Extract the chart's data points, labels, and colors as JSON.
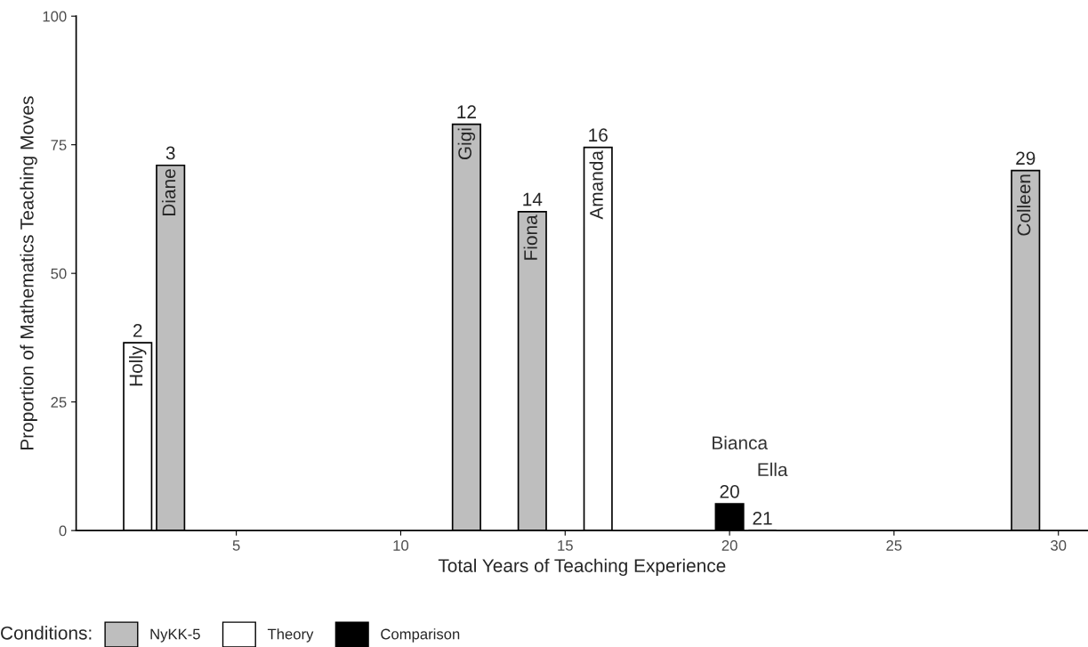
{
  "chart_data": {
    "type": "bar",
    "xlabel": "Total Years of Teaching Experience",
    "ylabel": "Proportion of Mathematics Teaching Moves",
    "legend_title": "Conditions:",
    "legend": "bottom",
    "grid": false,
    "x": [
      2,
      3,
      12,
      14,
      16,
      20,
      21,
      29
    ],
    "series": [
      {
        "name": "NyKK-5",
        "color": "#bebebe",
        "values": [
          null,
          71,
          79,
          62,
          null,
          null,
          null,
          70
        ]
      },
      {
        "name": "Theory",
        "color": "#ffffff",
        "values": [
          36.5,
          null,
          null,
          null,
          74.5,
          null,
          null,
          null
        ]
      },
      {
        "name": "Comparison",
        "color": "#000000",
        "values": [
          null,
          null,
          null,
          null,
          null,
          5.2,
          0,
          null
        ]
      }
    ],
    "annotations": [
      {
        "text": "2",
        "x": 2,
        "y": 36.5
      },
      {
        "text": "3",
        "x": 3,
        "y": 71
      },
      {
        "text": "12",
        "x": 12,
        "y": 79
      },
      {
        "text": "14",
        "x": 14,
        "y": 62
      },
      {
        "text": "16",
        "x": 16,
        "y": 74.5
      },
      {
        "text": "20",
        "x": 20,
        "y": 5.2
      },
      {
        "text": "21",
        "x": 21,
        "y": 0
      },
      {
        "text": "29",
        "x": 29,
        "y": 70
      },
      {
        "text": "Holly",
        "x": 2,
        "y": 36.5
      },
      {
        "text": "Diane",
        "x": 3,
        "y": 71
      },
      {
        "text": "Gigi",
        "x": 12,
        "y": 79
      },
      {
        "text": "Fiona",
        "x": 14,
        "y": 62
      },
      {
        "text": "Amanda",
        "x": 16,
        "y": 74.5
      },
      {
        "text": "Colleen",
        "x": 29,
        "y": 70
      },
      {
        "text": "Bianca",
        "x": 20,
        "y": 5.2
      },
      {
        "text": "Ella",
        "x": 21,
        "y": 0
      }
    ],
    "xlim": [
      0.13,
      30.9
    ],
    "ylim": [
      0,
      100
    ],
    "xticks": [
      5,
      10,
      15,
      20,
      25,
      30
    ],
    "yticks": [
      0,
      25,
      50,
      75,
      100
    ]
  }
}
